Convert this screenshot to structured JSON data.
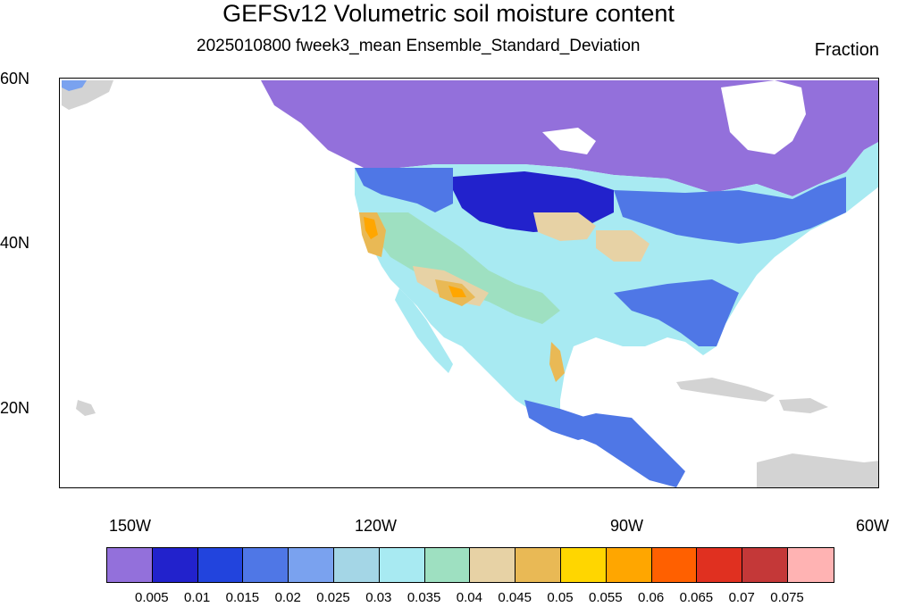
{
  "title": "GEFSv12 Volumetric soil moisture content",
  "subtitle": "2025010800 fweek3_mean Ensemble_Standard_Deviation",
  "units": "Fraction",
  "lat_labels": [
    "60N",
    "40N",
    "20N"
  ],
  "lon_labels": [
    "150W",
    "120W",
    "90W",
    "60W"
  ],
  "colorbar": {
    "colors": [
      "#9370db",
      "#2222cc",
      "#2244dd",
      "#4f77e6",
      "#7aa2ef",
      "#a4d6e6",
      "#a8eaf2",
      "#9ee0c1",
      "#e7d2a5",
      "#e9b955",
      "#ffd600",
      "#ffa600",
      "#ff6000",
      "#e03020",
      "#c43838",
      "#ffb3b3"
    ],
    "labels": [
      "0.005",
      "0.01",
      "0.015",
      "0.02",
      "0.025",
      "0.03",
      "0.035",
      "0.04",
      "0.045",
      "0.05",
      "0.055",
      "0.06",
      "0.065",
      "0.07",
      "0.075"
    ]
  },
  "map": {
    "land_color": "#d3d3d3",
    "levels": [
      {
        "name": "canada-north",
        "color": "#9370db"
      },
      {
        "name": "northern-plains-low",
        "color": "#2222cc"
      },
      {
        "name": "north-band",
        "color": "#4f77e6"
      },
      {
        "name": "north-mid-band",
        "color": "#7aa2ef"
      },
      {
        "name": "interior",
        "color": "#a8eaf2"
      },
      {
        "name": "southwest-moderate",
        "color": "#9ee0c1"
      },
      {
        "name": "southwest-high",
        "color": "#e7d2a5"
      },
      {
        "name": "hot-spots",
        "color": "#e9b955"
      },
      {
        "name": "peaks",
        "color": "#ffa600"
      },
      {
        "name": "east-blue",
        "color": "#4f77e6"
      },
      {
        "name": "mexico-south",
        "color": "#4f77e6"
      }
    ]
  }
}
